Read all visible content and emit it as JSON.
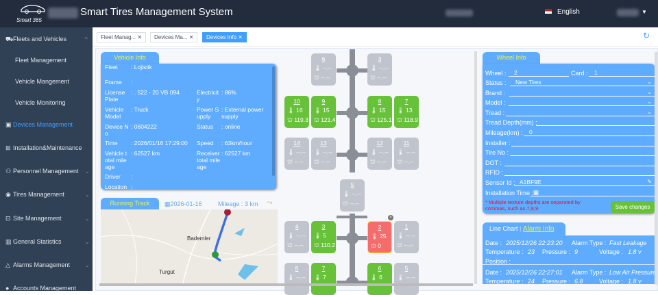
{
  "header": {
    "title": "Smart Tires Management System",
    "logo_text": "Smart 365",
    "language": "English"
  },
  "sidebar": {
    "items": [
      {
        "label": "Fleets and Vehicles",
        "icon": "truck-icon",
        "expanded": true
      },
      {
        "label": "Fleet Management",
        "sub": true
      },
      {
        "label": "Vehicle Mangement",
        "sub": true
      },
      {
        "label": "Vehicle Monitoring",
        "sub": true
      },
      {
        "label": "Devices Management",
        "icon": "device-icon",
        "active": true
      },
      {
        "label": "Installation&Maintenance",
        "icon": "install-icon"
      },
      {
        "label": "Personnel Management",
        "icon": "people-icon",
        "chev": true
      },
      {
        "label": "Tires Management",
        "icon": "tire-icon",
        "chev": true
      },
      {
        "label": "Site Management",
        "icon": "site-icon",
        "chev": true
      },
      {
        "label": "General Statistics",
        "icon": "stats-icon",
        "chev": true
      },
      {
        "label": "Alarms Management",
        "icon": "alarm-icon",
        "chev": true
      },
      {
        "label": "Accounts Management",
        "icon": "account-icon"
      }
    ]
  },
  "tabs": [
    {
      "label": "Fleet Manag...",
      "active": false
    },
    {
      "label": "Devices Ma...",
      "active": false
    },
    {
      "label": "Devices Info",
      "active": true
    }
  ],
  "vehicle_info": {
    "title": "Vehicle Info",
    "fields": [
      {
        "label": "Fleet",
        "value": "Lojistik"
      },
      {
        "label": "Frame",
        "value": ""
      },
      {
        "label": "License Plate",
        "value": ". 522 - 20 VB 094"
      },
      {
        "label": "Electricity",
        "value": "86%"
      },
      {
        "label": "Vehicle Model",
        "value": "Truck"
      },
      {
        "label": "Power Supply",
        "value": "External power supply"
      },
      {
        "label": "Device No",
        "value": "0604222"
      },
      {
        "label": "Status",
        "value": "online"
      },
      {
        "label": "Time",
        "value": "2026/01/16 17:29:00"
      },
      {
        "label": "Speed",
        "value": "63km/hour"
      },
      {
        "label": "Vehicle total mileage",
        "value": "62527 km"
      },
      {
        "label": "Receiver total mileage",
        "value": "62527 km"
      },
      {
        "label": "Driver",
        "value": ""
      },
      {
        "label": "Location",
        "value": ""
      }
    ]
  },
  "running_track": {
    "title": "Running Track",
    "date": "2026-01-16",
    "mileage": "Mileage : 3 km",
    "map_labels": [
      "Bademler",
      "Turgut"
    ]
  },
  "tires": [
    {
      "no": "6",
      "temp": "--.--",
      "pressure": "--.--",
      "state": "none"
    },
    {
      "no": "3",
      "temp": "--.--",
      "pressure": "--.--",
      "state": "none"
    },
    {
      "no": "10",
      "temp": "16",
      "pressure": "119.3",
      "state": "ok"
    },
    {
      "no": "9",
      "temp": "15",
      "pressure": "121.4",
      "state": "ok"
    },
    {
      "no": "8",
      "temp": "15",
      "pressure": "125.1",
      "state": "ok"
    },
    {
      "no": "7",
      "temp": "13",
      "pressure": "118.9",
      "state": "ok"
    },
    {
      "no": "14",
      "temp": "--.--",
      "pressure": "--.--",
      "state": "none"
    },
    {
      "no": "13",
      "temp": "--.--",
      "pressure": "--.--",
      "state": "none"
    },
    {
      "no": "12",
      "temp": "--.--",
      "pressure": "--.--",
      "state": "none"
    },
    {
      "no": "11",
      "temp": "--.--",
      "pressure": "--.--",
      "state": "none"
    },
    {
      "no": "5",
      "temp": "--.--",
      "pressure": "--.--",
      "state": "none"
    },
    {
      "no": "4",
      "temp": "--.--",
      "pressure": "--.--",
      "state": "none"
    },
    {
      "no": "3",
      "temp": "5",
      "pressure": "110.2",
      "state": "ok"
    },
    {
      "no": "2",
      "temp": "25",
      "pressure": "0",
      "state": "alarm"
    },
    {
      "no": "1",
      "temp": "--.--",
      "pressure": "--.--",
      "state": "none"
    },
    {
      "no": "8",
      "temp": "--.--",
      "pressure": "",
      "state": "none"
    },
    {
      "no": "7",
      "temp": "7",
      "pressure": "",
      "state": "ok"
    },
    {
      "no": "6",
      "temp": "6",
      "pressure": "",
      "state": "ok"
    },
    {
      "no": "5",
      "temp": "--.--",
      "pressure": "",
      "state": "none"
    }
  ],
  "wheel_info": {
    "title": "Wheel Info",
    "wheel_label": "Wheel :",
    "wheel": "2",
    "card_label": "Card :",
    "card": "1",
    "fields": [
      {
        "label": "Status :",
        "value": "New Tires",
        "select": true
      },
      {
        "label": "Brand :",
        "value": "",
        "select": true
      },
      {
        "label": "Model :",
        "value": "",
        "select": true
      },
      {
        "label": "Tread :",
        "value": "",
        "select": true
      },
      {
        "label": "Tread Depth(mm) :",
        "value": ""
      },
      {
        "label": "Mileage(km) :",
        "value": "0"
      },
      {
        "label": "Installer :",
        "value": ""
      },
      {
        "label": "Tire No :",
        "value": ""
      },
      {
        "label": "DOT :",
        "value": ""
      },
      {
        "label": "RFID :",
        "value": ""
      },
      {
        "label": "Sensor Id :",
        "value": "A1BF9E"
      },
      {
        "label": "Installation Time :",
        "value": ""
      }
    ],
    "note": "* Multiple texture depths are separated by commas, such as 7,8,9",
    "save": "Save changes"
  },
  "alarm": {
    "tab_chart": "Line Chart",
    "tab_alarm": "Alarm Info",
    "records": [
      {
        "date": "2025/12/26 22:23:20",
        "type": "Fast Leakage",
        "temperature": "23",
        "pressure": "9",
        "voltage": "1.8 v",
        "position": ""
      },
      {
        "date": "2025/12/26 22:27:01",
        "type": "Low Air Pressure",
        "temperature": "24",
        "pressure": "6.8",
        "voltage": "1.8 v"
      }
    ],
    "labels": {
      "date": "Date :",
      "type": "Alarm Type :",
      "temperature": "Temperature :",
      "pressure": "Pressure :",
      "voltage": "Voltage :",
      "position": "Position :"
    }
  },
  "colors": {
    "ok": "#67c23a",
    "none": "#c0c4cc",
    "alarm": "#f56c6c",
    "accent": "#409eff"
  }
}
